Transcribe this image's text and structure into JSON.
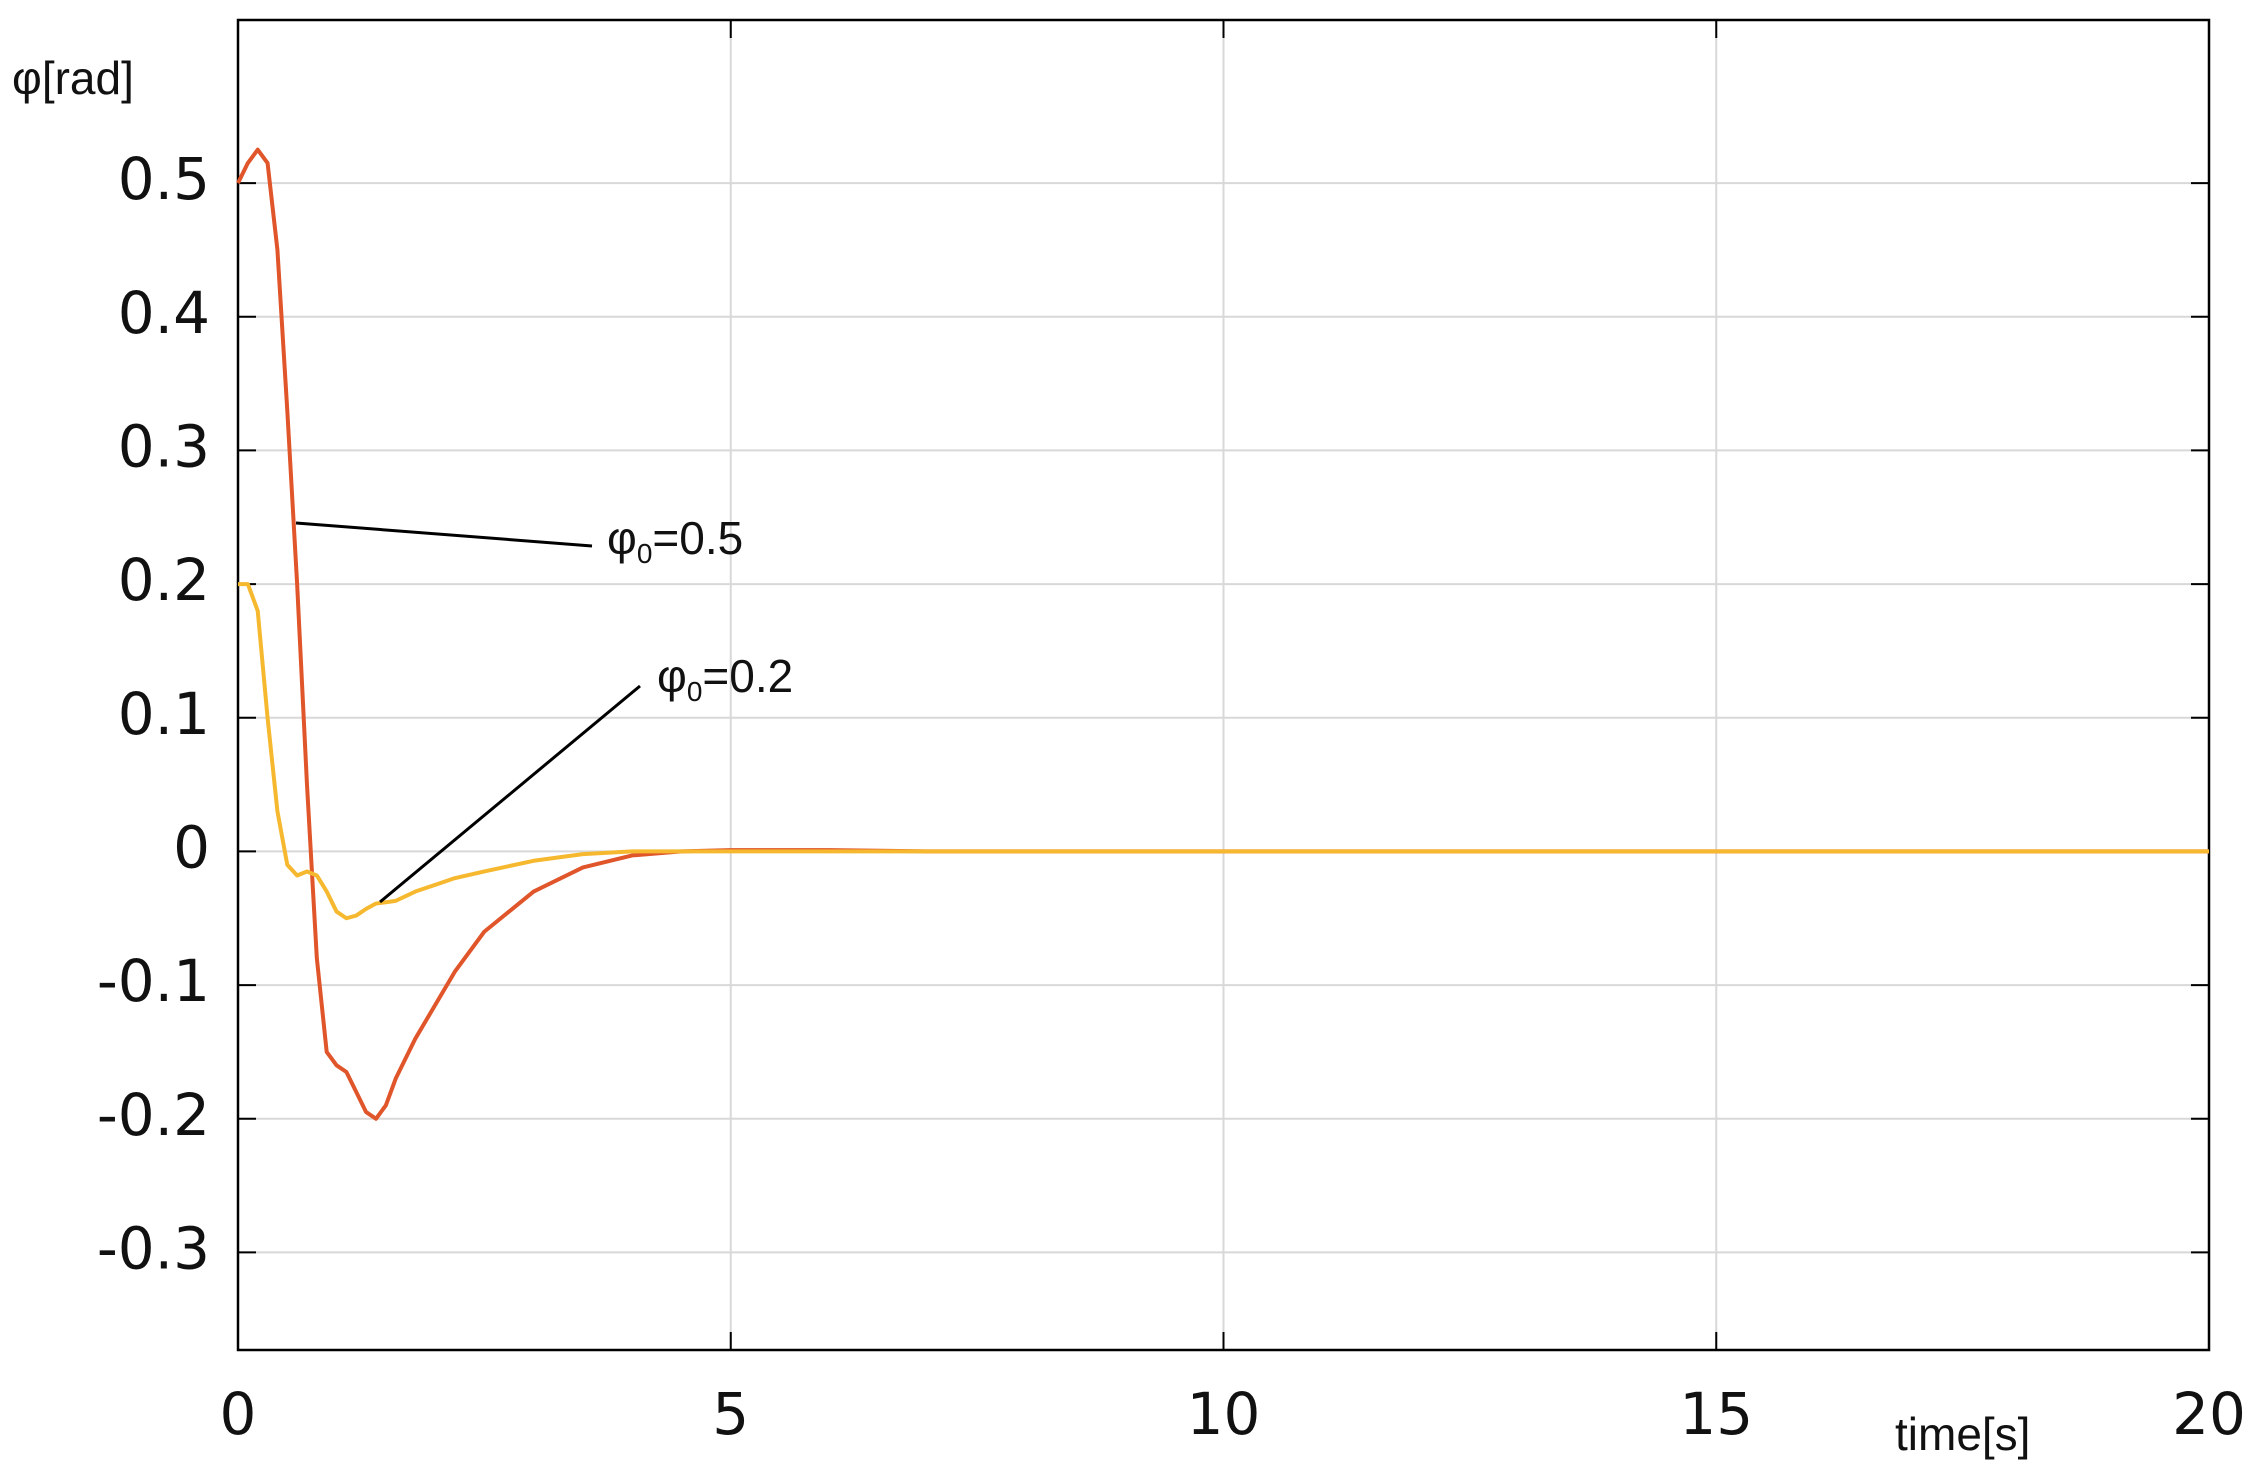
{
  "chart_data": {
    "type": "line",
    "y_label": "φ[rad]",
    "x_label": "time[s]",
    "x": [
      0,
      0.1,
      0.2,
      0.3,
      0.4,
      0.5,
      0.6,
      0.7,
      0.8,
      0.9,
      1.0,
      1.1,
      1.2,
      1.3,
      1.4,
      1.5,
      1.6,
      1.8,
      2.0,
      2.2,
      2.5,
      3.0,
      3.5,
      4.0,
      4.5,
      5,
      6,
      7,
      10,
      15,
      20
    ],
    "series": [
      {
        "color": "#e0552a",
        "values": [
          0.5,
          0.515,
          0.525,
          0.515,
          0.45,
          0.33,
          0.2,
          0.05,
          -0.08,
          -0.15,
          -0.16,
          -0.165,
          -0.18,
          -0.195,
          -0.2,
          -0.19,
          -0.17,
          -0.14,
          -0.115,
          -0.09,
          -0.06,
          -0.03,
          -0.012,
          -0.003,
          0,
          0.001,
          0.001,
          0,
          0,
          0,
          0
        ]
      },
      {
        "color": "#f5b82e",
        "values": [
          0.2,
          0.2,
          0.18,
          0.1,
          0.03,
          -0.01,
          -0.018,
          -0.015,
          -0.018,
          -0.03,
          -0.045,
          -0.05,
          -0.048,
          -0.043,
          -0.039,
          -0.038,
          -0.037,
          -0.03,
          -0.025,
          -0.02,
          -0.015,
          -0.007,
          -0.002,
          0,
          0,
          0,
          0,
          0,
          0,
          0,
          0
        ]
      }
    ],
    "annotations": [
      {
        "symbol": "φ",
        "subscript": "0",
        "text": "=0.5"
      },
      {
        "symbol": "φ",
        "subscript": "0",
        "text": "=0.2"
      }
    ],
    "xlim": [
      0,
      20
    ],
    "xticks": [
      0,
      5,
      10,
      15,
      20
    ],
    "ylim": [
      -0.373,
      0.622
    ],
    "yticks": [
      -0.3,
      -0.2,
      -0.1,
      0,
      0.1,
      0.2,
      0.3,
      0.4,
      0.5
    ],
    "grid": true
  }
}
